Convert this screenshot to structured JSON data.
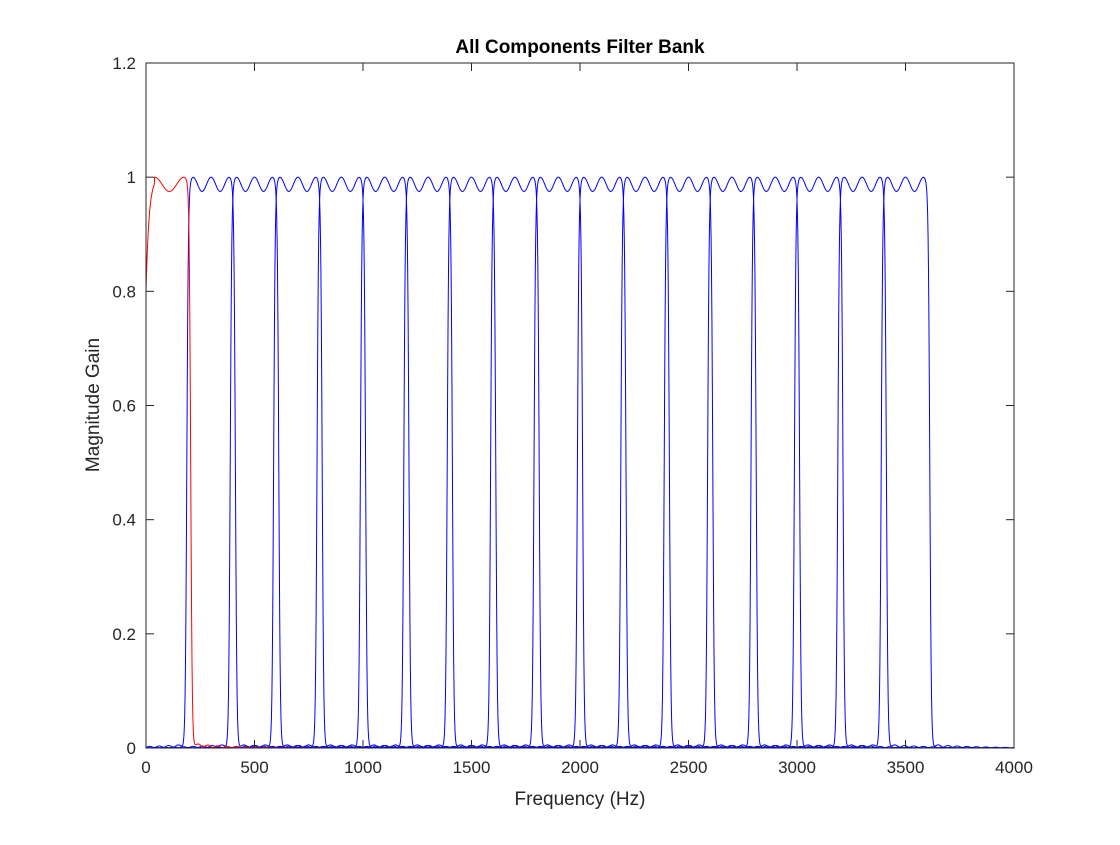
{
  "chart_data": {
    "type": "line",
    "title": "All Components Filter Bank",
    "xlabel": "Frequency (Hz)",
    "ylabel": "Magnitude Gain",
    "xlim": [
      0,
      4000
    ],
    "ylim": [
      0,
      1.2
    ],
    "xticks": [
      0,
      500,
      1000,
      1500,
      2000,
      2500,
      3000,
      3500,
      4000
    ],
    "xtick_labels": [
      "0",
      "500",
      "1000",
      "1500",
      "2000",
      "2500",
      "3000",
      "3500",
      "4000"
    ],
    "yticks": [
      0,
      0.2,
      0.4,
      0.6,
      0.8,
      1.0,
      1.2
    ],
    "ytick_labels": [
      "0",
      "0.2",
      "0.4",
      "0.6",
      "0.8",
      "1",
      "1.2"
    ],
    "grid": false,
    "colors": {
      "lowpass": "#ff0000",
      "bandpass": "#0000ff",
      "axis": "#262626"
    },
    "passband_ripple": {
      "max": 1.0,
      "min": 0.975
    },
    "lowpass": {
      "dc_gain": 0.8,
      "edge_hz": 200
    },
    "bandpass_centers_hz": [
      300,
      500,
      700,
      900,
      1100,
      1300,
      1500,
      1700,
      1900,
      2100,
      2300,
      2500,
      2700,
      2900,
      3100,
      3300,
      3500
    ],
    "bandpass_half_width_hz": 100
  }
}
